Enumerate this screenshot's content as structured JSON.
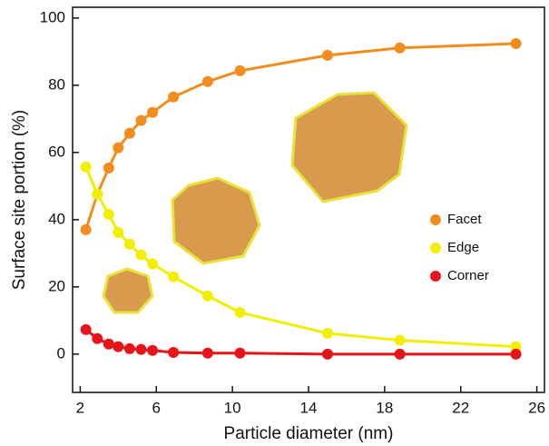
{
  "chart_data": {
    "type": "line",
    "x_label": "Particle diameter (nm)",
    "y_label": "Surface site portion (%)",
    "x": [
      2.3,
      2.9,
      3.5,
      4.0,
      4.6,
      5.2,
      5.8,
      6.9,
      8.7,
      10.4,
      15.0,
      18.8,
      24.9
    ],
    "series": [
      {
        "name": "Facet",
        "color": "#f28c1c",
        "values": [
          37.0,
          47.6,
          55.4,
          61.4,
          65.7,
          69.5,
          71.9,
          76.5,
          81.1,
          84.3,
          88.9,
          91.1,
          92.4
        ]
      },
      {
        "name": "Edge",
        "color": "#f2ee00",
        "values": [
          55.7,
          47.6,
          41.6,
          36.2,
          32.7,
          29.5,
          26.8,
          23.0,
          17.3,
          12.4,
          6.2,
          4.1,
          2.2
        ]
      },
      {
        "name": "Corner",
        "color": "#e8141a",
        "values": [
          7.3,
          4.6,
          3.0,
          2.2,
          1.6,
          1.4,
          1.1,
          0.5,
          0.3,
          0.3,
          0,
          0,
          0
        ]
      }
    ],
    "xlim": [
      1.6,
      26.4
    ],
    "ylim": [
      -11.4,
      103.2
    ],
    "xticks": [
      2,
      6,
      10,
      14,
      18,
      22,
      26
    ],
    "yticks": [
      0,
      20,
      40,
      60,
      80,
      100
    ],
    "legend": "center right"
  }
}
